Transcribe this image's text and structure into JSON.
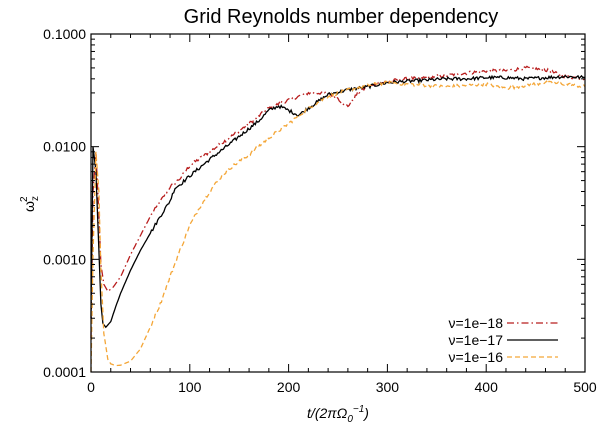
{
  "chart_data": {
    "type": "line",
    "title": "Grid Reynolds number dependency",
    "xlabel": "t/(2πΩ₀⁻¹)",
    "ylabel": "ωz²",
    "xlim": [
      0,
      500
    ],
    "ylim": [
      0.0001,
      0.1
    ],
    "yscale": "log",
    "x_ticks": [
      0,
      100,
      200,
      300,
      400,
      500
    ],
    "x_tick_labels": [
      "0",
      "100",
      "200",
      "300",
      "400",
      "500"
    ],
    "y_ticks": [
      0.0001,
      0.001,
      0.01,
      0.1
    ],
    "y_tick_labels": [
      "0.0001",
      "0.0010",
      "0.0100",
      "0.1000"
    ],
    "grid": false,
    "legend_position": "bottom-right",
    "series": [
      {
        "name": "ν=1e−18",
        "color": "#b81d1d",
        "dash": "dashdot",
        "x": [
          0,
          2,
          5,
          8,
          10,
          13,
          17,
          22,
          30,
          40,
          60,
          80,
          90,
          100,
          120,
          140,
          160,
          180,
          200,
          220,
          240,
          250,
          255,
          260,
          265,
          270,
          280,
          300,
          320,
          340,
          360,
          380,
          400,
          420,
          440,
          460,
          480,
          500
        ],
        "y": [
          0.0002,
          0.004,
          0.009,
          0.0025,
          0.0009,
          0.0006,
          0.00052,
          0.00056,
          0.0007,
          0.0011,
          0.0024,
          0.0044,
          0.0052,
          0.0068,
          0.009,
          0.012,
          0.016,
          0.022,
          0.026,
          0.03,
          0.03,
          0.027,
          0.024,
          0.023,
          0.026,
          0.03,
          0.034,
          0.038,
          0.04,
          0.041,
          0.043,
          0.045,
          0.047,
          0.047,
          0.05,
          0.048,
          0.042,
          0.04
        ]
      },
      {
        "name": "ν=1e−17",
        "color": "#000000",
        "dash": "solid",
        "x": [
          0,
          2,
          5,
          8,
          10,
          12,
          15,
          20,
          25,
          30,
          40,
          50,
          60,
          70,
          80,
          85,
          90,
          100,
          120,
          140,
          160,
          170,
          180,
          190,
          200,
          210,
          220,
          240,
          260,
          280,
          300,
          320,
          340,
          360,
          380,
          400,
          420,
          440,
          460,
          480,
          500
        ],
        "y": [
          0.0003,
          0.01,
          0.006,
          0.0012,
          0.0004,
          0.00027,
          0.00025,
          0.00028,
          0.00038,
          0.0005,
          0.0008,
          0.0012,
          0.0017,
          0.0024,
          0.0033,
          0.0043,
          0.0046,
          0.0055,
          0.0077,
          0.0105,
          0.0145,
          0.017,
          0.021,
          0.023,
          0.021,
          0.019,
          0.022,
          0.029,
          0.032,
          0.034,
          0.037,
          0.038,
          0.039,
          0.04,
          0.04,
          0.041,
          0.041,
          0.04,
          0.041,
          0.042,
          0.041
        ]
      },
      {
        "name": "ν=1e−16",
        "color": "#f4a637",
        "dash": "dashed",
        "x": [
          0,
          2,
          5,
          8,
          10,
          13,
          17,
          20,
          25,
          30,
          40,
          50,
          60,
          70,
          80,
          90,
          100,
          110,
          120,
          130,
          140,
          160,
          180,
          200,
          220,
          240,
          260,
          280,
          300,
          320,
          340,
          360,
          380,
          400,
          420,
          440,
          460,
          480,
          500
        ],
        "y": [
          0.0001,
          0.0011,
          0.009,
          0.004,
          0.0008,
          0.00022,
          0.00013,
          0.000118,
          0.000114,
          0.000115,
          0.000125,
          0.00016,
          0.00025,
          0.0004,
          0.0007,
          0.0012,
          0.002,
          0.0029,
          0.004,
          0.0052,
          0.0064,
          0.0085,
          0.012,
          0.016,
          0.022,
          0.028,
          0.032,
          0.035,
          0.037,
          0.036,
          0.035,
          0.034,
          0.035,
          0.036,
          0.033,
          0.035,
          0.037,
          0.036,
          0.034
        ]
      }
    ]
  }
}
